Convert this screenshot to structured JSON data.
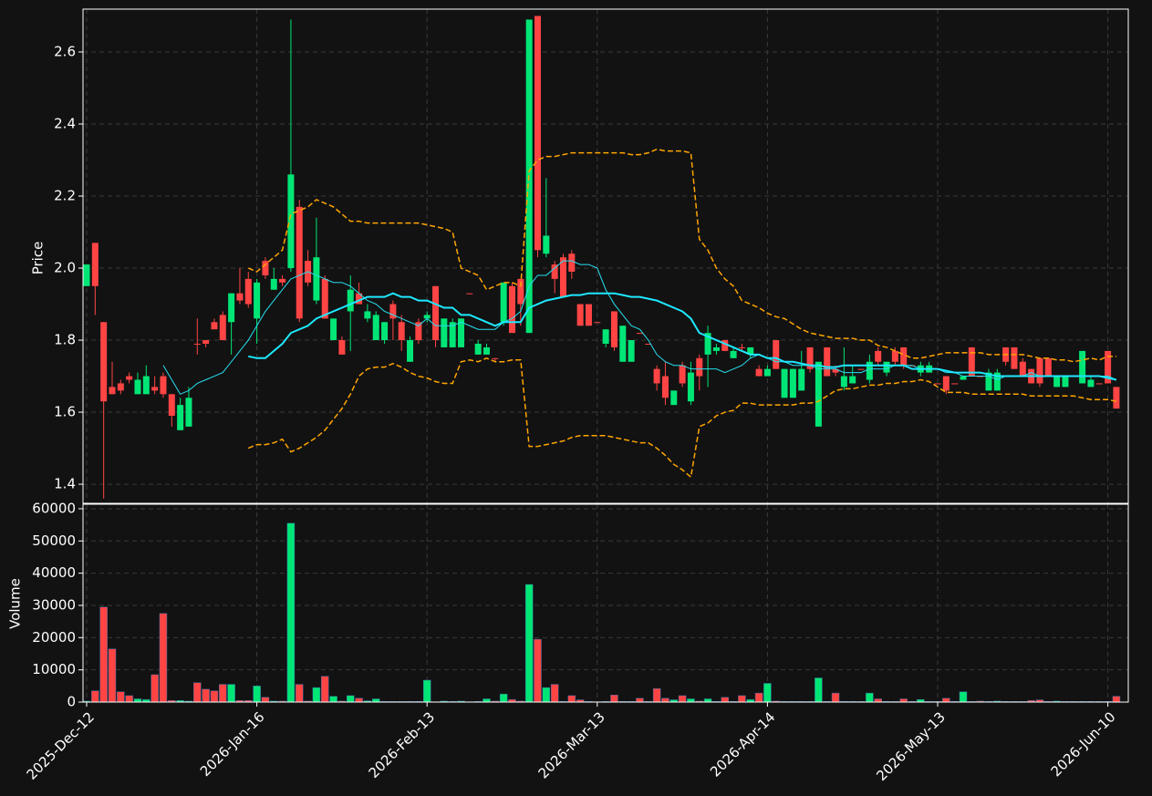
{
  "chart_data": {
    "type": "candlestick",
    "grid": true,
    "up_color": "#00e676",
    "down_color": "#ff4444",
    "ylabel": "Price",
    "ylim": [
      1.347,
      2.719
    ],
    "yticks": [
      1.4,
      1.6,
      1.8,
      {
        "value": 2,
        "label": "2.0"
      },
      2.2,
      2.4,
      2.6
    ],
    "volume_ylabel": "Volume",
    "volume_ylim": [
      0,
      61400
    ],
    "volume_yticks": [
      0,
      10000,
      20000,
      30000,
      40000,
      50000,
      60000
    ],
    "categories": [
      "2025-Dec-12",
      null,
      null,
      null,
      null,
      null,
      null,
      null,
      null,
      null,
      null,
      null,
      null,
      null,
      null,
      null,
      null,
      null,
      null,
      null,
      "2026-Jan-16",
      null,
      null,
      null,
      null,
      null,
      null,
      null,
      null,
      null,
      null,
      null,
      null,
      null,
      null,
      null,
      null,
      null,
      null,
      null,
      "2026-Feb-13",
      null,
      null,
      null,
      null,
      null,
      null,
      null,
      null,
      null,
      null,
      null,
      null,
      null,
      null,
      null,
      null,
      null,
      null,
      null,
      "2026-Mar-13",
      null,
      null,
      null,
      null,
      null,
      null,
      null,
      null,
      null,
      null,
      null,
      null,
      null,
      null,
      null,
      null,
      null,
      null,
      null,
      "2026-Apr-14",
      null,
      null,
      null,
      null,
      null,
      null,
      null,
      null,
      null,
      null,
      null,
      null,
      null,
      null,
      null,
      null,
      null,
      null,
      null,
      "2026-May-13",
      null,
      null,
      null,
      null,
      null,
      null,
      null,
      null,
      null,
      null,
      null,
      null,
      null,
      null,
      null,
      null,
      null,
      null,
      null,
      "2026-Jun-10",
      null
    ],
    "open": [
      1.95,
      2.07,
      1.85,
      1.67,
      1.68,
      1.7,
      1.65,
      1.65,
      1.67,
      1.7,
      1.65,
      1.55,
      1.56,
      1.79,
      1.8,
      1.85,
      1.87,
      1.85,
      1.93,
      1.97,
      1.86,
      2.02,
      1.94,
      1.97,
      2.0,
      2.17,
      2.02,
      1.91,
      1.97,
      1.8,
      1.8,
      1.88,
      1.93,
      1.86,
      1.8,
      1.8,
      1.9,
      1.85,
      1.74,
      1.85,
      1.86,
      1.95,
      1.78,
      1.78,
      1.78,
      1.93,
      1.76,
      1.76,
      1.75,
      1.85,
      1.95,
      1.97,
      1.82,
      2.7,
      2.04,
      2.01,
      2.03,
      2.04,
      1.9,
      1.9,
      1.85,
      1.79,
      1.88,
      1.74,
      1.74,
      1.82,
      1.79,
      1.72,
      1.7,
      1.62,
      1.73,
      1.63,
      1.75,
      1.76,
      1.77,
      1.8,
      1.75,
      1.78,
      1.76,
      1.72,
      1.7,
      1.8,
      1.64,
      1.64,
      1.66,
      1.78,
      1.56,
      1.78,
      1.72,
      1.67,
      1.68,
      1.72,
      1.69,
      1.77,
      1.71,
      1.77,
      1.78,
      1.73,
      1.71,
      1.71,
      1.68,
      1.7,
      1.68,
      1.69,
      1.78,
      1.7,
      1.66,
      1.66,
      1.78,
      1.78,
      1.74,
      1.72,
      1.75,
      1.75,
      1.67,
      1.67,
      1.7,
      1.68,
      1.67,
      1.68,
      1.77,
      1.67
    ],
    "high": [
      2.01,
      2.07,
      1.85,
      1.74,
      1.69,
      1.71,
      1.71,
      1.73,
      1.7,
      1.71,
      1.65,
      1.64,
      1.67,
      1.86,
      1.8,
      1.86,
      1.88,
      1.93,
      2.0,
      1.99,
      1.97,
      2.03,
      2.0,
      1.98,
      2.69,
      2.19,
      2.05,
      2.14,
      1.98,
      1.86,
      1.81,
      1.98,
      1.96,
      1.9,
      1.88,
      1.85,
      1.91,
      1.87,
      1.81,
      1.86,
      1.88,
      1.95,
      1.86,
      1.86,
      1.86,
      1.93,
      1.8,
      1.79,
      1.75,
      1.96,
      1.96,
      1.97,
      2.69,
      2.7,
      2.25,
      2.02,
      2.04,
      2.05,
      1.9,
      1.9,
      1.85,
      1.83,
      1.88,
      1.84,
      1.8,
      1.82,
      1.79,
      1.73,
      1.74,
      1.66,
      1.74,
      1.74,
      1.76,
      1.84,
      1.79,
      1.8,
      1.78,
      1.79,
      1.78,
      1.73,
      1.73,
      1.8,
      1.72,
      1.72,
      1.77,
      1.78,
      1.74,
      1.78,
      1.73,
      1.78,
      1.73,
      1.72,
      1.76,
      1.78,
      1.74,
      1.78,
      1.78,
      1.73,
      1.74,
      1.74,
      1.68,
      1.7,
      1.68,
      1.7,
      1.78,
      1.7,
      1.72,
      1.72,
      1.78,
      1.78,
      1.75,
      1.72,
      1.75,
      1.75,
      1.7,
      1.7,
      1.7,
      1.77,
      1.7,
      1.68,
      1.77,
      1.67
    ],
    "low": [
      1.95,
      1.87,
      1.36,
      1.65,
      1.65,
      1.68,
      1.65,
      1.65,
      1.65,
      1.64,
      1.56,
      1.55,
      1.56,
      1.76,
      1.78,
      1.83,
      1.8,
      1.76,
      1.9,
      1.89,
      1.79,
      1.97,
      1.94,
      1.95,
      1.99,
      1.85,
      1.95,
      1.9,
      1.86,
      1.8,
      1.76,
      1.77,
      1.9,
      1.85,
      1.8,
      1.79,
      1.8,
      1.77,
      1.74,
      1.79,
      1.85,
      1.78,
      1.78,
      1.78,
      1.78,
      1.93,
      1.76,
      1.76,
      1.74,
      1.84,
      1.82,
      1.84,
      1.82,
      2.03,
      2.03,
      1.93,
      1.92,
      1.97,
      1.84,
      1.84,
      1.85,
      1.78,
      1.77,
      1.74,
      1.74,
      1.82,
      1.79,
      1.66,
      1.62,
      1.62,
      1.67,
      1.62,
      1.66,
      1.67,
      1.76,
      1.77,
      1.75,
      1.77,
      1.75,
      1.7,
      1.7,
      1.72,
      1.64,
      1.64,
      1.66,
      1.71,
      1.56,
      1.7,
      1.7,
      1.66,
      1.68,
      1.72,
      1.68,
      1.73,
      1.7,
      1.73,
      1.72,
      1.73,
      1.7,
      1.71,
      1.68,
      1.65,
      1.68,
      1.69,
      1.7,
      1.7,
      1.66,
      1.66,
      1.73,
      1.72,
      1.7,
      1.68,
      1.67,
      1.7,
      1.67,
      1.67,
      1.7,
      1.68,
      1.67,
      1.68,
      1.68,
      1.61
    ],
    "close": [
      2.01,
      1.95,
      1.63,
      1.65,
      1.66,
      1.69,
      1.69,
      1.7,
      1.66,
      1.65,
      1.59,
      1.62,
      1.64,
      1.79,
      1.79,
      1.83,
      1.8,
      1.93,
      1.91,
      1.9,
      1.96,
      1.98,
      1.97,
      1.96,
      2.26,
      1.86,
      1.96,
      2.03,
      1.86,
      1.86,
      1.76,
      1.94,
      1.9,
      1.88,
      1.87,
      1.85,
      1.86,
      1.8,
      1.8,
      1.8,
      1.87,
      1.8,
      1.86,
      1.85,
      1.86,
      1.93,
      1.79,
      1.78,
      1.75,
      1.96,
      1.82,
      1.9,
      2.69,
      2.05,
      2.09,
      1.97,
      1.92,
      1.99,
      1.84,
      1.84,
      1.85,
      1.83,
      1.78,
      1.84,
      1.8,
      1.82,
      1.79,
      1.68,
      1.64,
      1.66,
      1.68,
      1.71,
      1.7,
      1.82,
      1.78,
      1.77,
      1.77,
      1.78,
      1.78,
      1.7,
      1.72,
      1.72,
      1.72,
      1.72,
      1.72,
      1.72,
      1.74,
      1.7,
      1.71,
      1.7,
      1.7,
      1.72,
      1.74,
      1.74,
      1.74,
      1.74,
      1.73,
      1.73,
      1.73,
      1.73,
      1.68,
      1.66,
      1.68,
      1.7,
      1.7,
      1.7,
      1.71,
      1.71,
      1.74,
      1.72,
      1.7,
      1.68,
      1.68,
      1.7,
      1.7,
      1.7,
      1.7,
      1.77,
      1.69,
      1.68,
      1.68,
      1.61
    ],
    "volume": [
      300,
      3500,
      29500,
      16500,
      3200,
      2000,
      1000,
      800,
      8500,
      27500,
      500,
      500,
      300,
      6000,
      4000,
      3500,
      5500,
      5500,
      500,
      500,
      5000,
      1500,
      300,
      300,
      55500,
      5500,
      300,
      4500,
      8000,
      1800,
      300,
      2000,
      1200,
      400,
      1000,
      200,
      200,
      200,
      200,
      200,
      6800,
      100,
      300,
      200,
      300,
      100,
      200,
      1000,
      300,
      2500,
      800,
      300,
      36500,
      19500,
      4500,
      5500,
      200,
      2000,
      700,
      200,
      100,
      200,
      2200,
      200,
      200,
      1200,
      200,
      4200,
      1200,
      700,
      2000,
      1000,
      300,
      1000,
      200,
      1500,
      200,
      2000,
      800,
      2800,
      5800,
      300,
      200,
      200,
      200,
      200,
      7500,
      200,
      2800,
      200,
      200,
      200,
      2800,
      1000,
      200,
      200,
      1000,
      200,
      800,
      200,
      200,
      1200,
      200,
      3200,
      200,
      300,
      200,
      300,
      200,
      200,
      200,
      500,
      700,
      200,
      300,
      200,
      200,
      200,
      200,
      200,
      200,
      1800
    ],
    "series": [
      {
        "color": "#26e0f0",
        "linewidth": 1,
        "linestyle": "solid",
        "values": [
          null,
          null,
          null,
          null,
          null,
          null,
          null,
          null,
          null,
          1.73,
          1.69,
          1.65,
          1.66,
          1.68,
          1.69,
          1.7,
          1.71,
          1.74,
          1.77,
          1.8,
          1.84,
          1.88,
          1.91,
          1.94,
          1.97,
          1.98,
          1.99,
          1.98,
          1.97,
          1.96,
          1.96,
          1.95,
          1.93,
          1.91,
          1.9,
          1.88,
          1.87,
          1.86,
          1.85,
          1.84,
          1.86,
          1.84,
          1.84,
          1.84,
          1.85,
          1.84,
          1.83,
          1.83,
          1.83,
          1.85,
          1.86,
          1.88,
          1.95,
          1.98,
          1.98,
          2.0,
          2.02,
          2.02,
          2.01,
          2.01,
          2.0,
          1.94,
          1.9,
          1.87,
          1.84,
          1.83,
          1.8,
          1.76,
          1.74,
          1.73,
          1.73,
          1.72,
          1.72,
          1.72,
          1.72,
          1.71,
          1.72,
          1.73,
          1.75,
          1.76,
          1.75,
          1.74,
          1.74,
          1.73,
          1.73,
          1.73,
          1.72,
          1.72,
          1.72,
          1.71,
          1.71,
          1.71,
          1.72,
          1.72,
          1.72,
          1.73,
          1.73,
          1.73,
          1.72,
          1.72,
          1.72,
          1.71,
          1.71,
          1.7,
          1.7,
          1.7,
          1.7,
          1.69,
          1.7,
          1.7,
          1.7,
          1.71,
          1.7,
          1.7,
          1.7,
          1.7,
          1.7,
          1.7,
          1.7,
          1.7,
          1.7,
          1.69
        ]
      },
      {
        "color": "#1ee8ff",
        "linewidth": 2,
        "linestyle": "solid",
        "values": [
          null,
          null,
          null,
          null,
          null,
          null,
          null,
          null,
          null,
          null,
          null,
          null,
          null,
          null,
          null,
          null,
          null,
          null,
          null,
          1.755,
          1.75,
          1.75,
          1.77,
          1.79,
          1.82,
          1.83,
          1.84,
          1.86,
          1.87,
          1.88,
          1.89,
          1.9,
          1.91,
          1.92,
          1.92,
          1.92,
          1.93,
          1.92,
          1.92,
          1.91,
          1.91,
          1.9,
          1.89,
          1.89,
          1.87,
          1.87,
          1.86,
          1.85,
          1.84,
          1.85,
          1.85,
          1.85,
          1.89,
          1.9,
          1.91,
          1.915,
          1.92,
          1.925,
          1.925,
          1.93,
          1.93,
          1.93,
          1.93,
          1.925,
          1.92,
          1.92,
          1.915,
          1.91,
          1.9,
          1.89,
          1.88,
          1.86,
          1.82,
          1.81,
          1.8,
          1.79,
          1.78,
          1.77,
          1.76,
          1.76,
          1.75,
          1.75,
          1.74,
          1.74,
          1.735,
          1.73,
          1.73,
          1.725,
          1.725,
          1.73,
          1.73,
          1.73,
          1.73,
          1.73,
          1.73,
          1.73,
          1.73,
          1.72,
          1.72,
          1.72,
          1.72,
          1.715,
          1.71,
          1.71,
          1.71,
          1.71,
          1.705,
          1.7,
          1.7,
          1.7,
          1.7,
          1.7,
          1.7,
          1.7,
          1.7,
          1.7,
          1.7,
          1.7,
          1.7,
          1.7,
          1.695,
          1.69
        ]
      },
      {
        "color": "#ffa500",
        "linewidth": 1.5,
        "linestyle": "dashed",
        "values": [
          null,
          null,
          null,
          null,
          null,
          null,
          null,
          null,
          null,
          null,
          null,
          null,
          null,
          null,
          null,
          null,
          null,
          null,
          null,
          2.0,
          1.99,
          2.01,
          2.03,
          2.05,
          2.15,
          2.16,
          2.17,
          2.19,
          2.18,
          2.17,
          2.15,
          2.13,
          2.13,
          2.125,
          2.125,
          2.125,
          2.125,
          2.125,
          2.125,
          2.125,
          2.12,
          2.115,
          2.11,
          2.1,
          2.0,
          1.99,
          1.98,
          1.94,
          1.95,
          1.96,
          1.96,
          1.95,
          2.27,
          2.3,
          2.31,
          2.31,
          2.315,
          2.32,
          2.32,
          2.32,
          2.32,
          2.32,
          2.32,
          2.32,
          2.315,
          2.315,
          2.32,
          2.33,
          2.325,
          2.325,
          2.325,
          2.32,
          2.08,
          2.05,
          2.0,
          1.97,
          1.95,
          1.91,
          1.9,
          1.89,
          1.875,
          1.865,
          1.86,
          1.845,
          1.83,
          1.82,
          1.815,
          1.81,
          1.805,
          1.805,
          1.805,
          1.8,
          1.8,
          1.785,
          1.78,
          1.77,
          1.76,
          1.75,
          1.75,
          1.755,
          1.76,
          1.765,
          1.765,
          1.765,
          1.765,
          1.765,
          1.76,
          1.76,
          1.76,
          1.76,
          1.76,
          1.755,
          1.75,
          1.75,
          1.745,
          1.745,
          1.74,
          1.745,
          1.75,
          1.745,
          1.755,
          1.755
        ]
      },
      {
        "color": "#ffa500",
        "linewidth": 1.5,
        "linestyle": "dashed",
        "values": [
          null,
          null,
          null,
          null,
          null,
          null,
          null,
          null,
          null,
          null,
          null,
          null,
          null,
          null,
          null,
          null,
          null,
          null,
          null,
          1.5,
          1.51,
          1.51,
          1.515,
          1.525,
          1.49,
          1.5,
          1.515,
          1.53,
          1.55,
          1.58,
          1.61,
          1.65,
          1.7,
          1.72,
          1.725,
          1.725,
          1.735,
          1.725,
          1.71,
          1.7,
          1.695,
          1.685,
          1.68,
          1.68,
          1.74,
          1.745,
          1.74,
          1.75,
          1.74,
          1.74,
          1.745,
          1.745,
          1.505,
          1.505,
          1.51,
          1.515,
          1.52,
          1.53,
          1.535,
          1.535,
          1.535,
          1.535,
          1.53,
          1.525,
          1.52,
          1.515,
          1.515,
          1.5,
          1.48,
          1.455,
          1.44,
          1.42,
          1.56,
          1.57,
          1.59,
          1.6,
          1.605,
          1.625,
          1.625,
          1.62,
          1.62,
          1.62,
          1.62,
          1.62,
          1.625,
          1.625,
          1.63,
          1.645,
          1.66,
          1.665,
          1.665,
          1.67,
          1.675,
          1.675,
          1.68,
          1.68,
          1.685,
          1.685,
          1.69,
          1.685,
          1.67,
          1.655,
          1.655,
          1.655,
          1.65,
          1.65,
          1.65,
          1.65,
          1.65,
          1.65,
          1.65,
          1.645,
          1.645,
          1.645,
          1.645,
          1.645,
          1.645,
          1.64,
          1.635,
          1.635,
          1.635,
          1.63
        ]
      }
    ]
  }
}
